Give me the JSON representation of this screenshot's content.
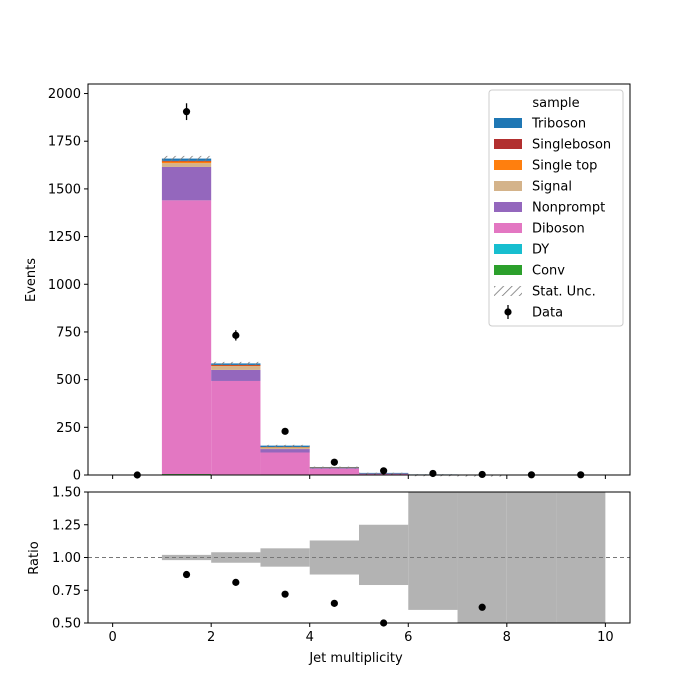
{
  "chart_data": [
    {
      "type": "bar",
      "stacked": true,
      "xlabel": "",
      "ylabel": "Events",
      "xlim": [
        -0.5,
        10.5
      ],
      "ylim": [
        0,
        2050
      ],
      "yticks": [
        0,
        250,
        500,
        750,
        1000,
        1250,
        1500,
        1750,
        2000
      ],
      "bin_edges": [
        0,
        1,
        2,
        3,
        4,
        5,
        6,
        7,
        8,
        9,
        10
      ],
      "series": [
        {
          "name": "Conv",
          "color": "#2ca02c",
          "values": [
            0,
            5,
            3,
            0,
            0,
            0,
            0,
            0,
            0,
            0
          ]
        },
        {
          "name": "DY",
          "color": "#17becf",
          "values": [
            0,
            0,
            0,
            0,
            0,
            0,
            0,
            0,
            0,
            0
          ]
        },
        {
          "name": "Diboson",
          "color": "#e377c2",
          "values": [
            0,
            1435,
            490,
            118,
            32,
            7,
            2,
            1,
            0,
            0
          ]
        },
        {
          "name": "Nonprompt",
          "color": "#9467bd",
          "values": [
            0,
            175,
            58,
            18,
            5,
            2,
            0.5,
            0,
            0,
            0
          ]
        },
        {
          "name": "Signal",
          "color": "#d4b38a",
          "values": [
            0,
            20,
            20,
            8,
            2,
            1,
            0,
            0,
            0,
            0
          ]
        },
        {
          "name": "Single top",
          "color": "#ff7f0e",
          "values": [
            0,
            10,
            5,
            2,
            1,
            0,
            0,
            0,
            0,
            0
          ]
        },
        {
          "name": "Singleboson",
          "color": "#b22f2f",
          "values": [
            0,
            2,
            1,
            0,
            0,
            0,
            0,
            0,
            0,
            0
          ]
        },
        {
          "name": "Triboson",
          "color": "#1f77b4",
          "values": [
            0,
            12,
            8,
            8,
            2,
            1,
            0.5,
            0,
            0,
            0
          ]
        }
      ],
      "stat_unc": [
        0,
        14,
        8,
        4,
        2,
        1,
        1,
        1,
        0,
        0
      ],
      "data_points": {
        "name": "Data",
        "x": [
          0.5,
          1.5,
          2.5,
          3.5,
          4.5,
          5.5,
          6.5,
          7.5,
          8.5,
          9.5
        ],
        "y": [
          0,
          1905,
          732,
          229,
          67,
          22,
          8,
          3,
          1,
          1
        ],
        "yerr": [
          0,
          44,
          27,
          15,
          8,
          5,
          3,
          2,
          1,
          1
        ]
      },
      "legend": {
        "title": "sample",
        "placement": "top-right",
        "entries": [
          "Triboson",
          "Singleboson",
          "Single top",
          "Signal",
          "Nonprompt",
          "Diboson",
          "DY",
          "Conv",
          "Stat. Unc.",
          "Data"
        ]
      }
    },
    {
      "type": "scatter",
      "xlabel": "Jet multiplicity",
      "ylabel": "Ratio",
      "xlim": [
        -0.5,
        10.5
      ],
      "ylim": [
        0.5,
        1.5
      ],
      "xticks": [
        0,
        2,
        4,
        6,
        8,
        10
      ],
      "yticks": [
        "0.50",
        "0.75",
        "1.00",
        "1.25",
        "1.50"
      ],
      "reference_line": 1.0,
      "unc_band": {
        "bin_edges": [
          1,
          2,
          3,
          4,
          5,
          6,
          7,
          8,
          9,
          10
        ],
        "low": [
          0.98,
          0.96,
          0.93,
          0.87,
          0.79,
          0.6,
          0.5,
          0.5,
          0.5
        ],
        "high": [
          1.02,
          1.04,
          1.07,
          1.13,
          1.25,
          1.5,
          1.5,
          1.5,
          1.5
        ]
      },
      "points": {
        "x": [
          1.5,
          2.5,
          3.5,
          4.5,
          5.5,
          7.5
        ],
        "y": [
          0.87,
          0.81,
          0.72,
          0.65,
          0.5,
          0.62
        ]
      }
    }
  ]
}
